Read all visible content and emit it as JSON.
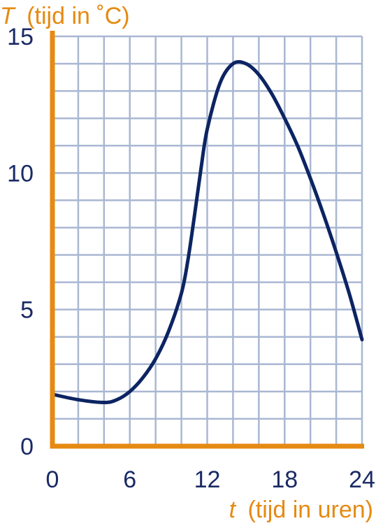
{
  "chart_data": {
    "type": "line",
    "ylabel_symbol": "T",
    "ylabel_text": "(tijd in ˚C)",
    "xlabel_symbol": "t",
    "xlabel_text": "(tijd in uren)",
    "xlim": [
      0,
      24
    ],
    "ylim": [
      0,
      15
    ],
    "x_ticks": [
      0,
      6,
      12,
      18,
      24
    ],
    "y_ticks": [
      0,
      5,
      10,
      15
    ],
    "x_tick_labels": [
      "0",
      "6",
      "12",
      "18",
      "24"
    ],
    "y_tick_labels": [
      "0",
      "5",
      "10",
      "15"
    ],
    "grid": true,
    "grid_step_x": 2,
    "grid_step_y": 1,
    "series": [
      {
        "color": "#0c2462",
        "x": [
          0,
          2,
          4,
          5,
          6,
          7,
          8,
          9,
          10,
          10.5,
          11,
          11.5,
          12,
          13,
          14,
          15,
          16,
          17,
          18,
          19,
          20,
          21,
          22,
          23,
          24
        ],
        "y": [
          1.9,
          1.7,
          1.6,
          1.7,
          2.0,
          2.5,
          3.2,
          4.2,
          5.6,
          6.8,
          8.4,
          10.1,
          11.6,
          13.3,
          14.0,
          14.0,
          13.6,
          12.9,
          12.0,
          11.0,
          9.8,
          8.5,
          7.1,
          5.6,
          3.9
        ]
      }
    ],
    "colors": {
      "axis": "#e58a12",
      "grid": "#a9b7d2",
      "line": "#0c2462",
      "tick_text": "#1a2a64"
    }
  }
}
